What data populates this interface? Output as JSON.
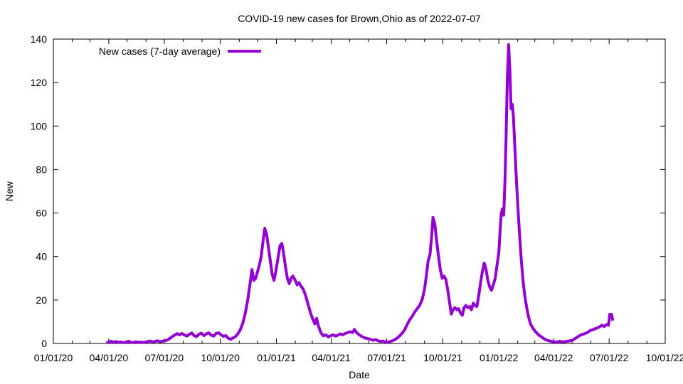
{
  "chart_data": {
    "type": "line",
    "title": "COVID-19 new cases for Brown,Ohio as of 2022-07-07",
    "xlabel": "Date",
    "ylabel": "New",
    "x_range": [
      "2020-01-01",
      "2022-10-01"
    ],
    "ylim": [
      0,
      140
    ],
    "yticks": [
      0,
      20,
      40,
      60,
      80,
      100,
      120,
      140
    ],
    "xticks": [
      {
        "date": "2020-01-01",
        "label": "01/01/20"
      },
      {
        "date": "2020-04-01",
        "label": "04/01/20"
      },
      {
        "date": "2020-07-01",
        "label": "07/01/20"
      },
      {
        "date": "2020-10-01",
        "label": "10/01/20"
      },
      {
        "date": "2021-01-01",
        "label": "01/01/21"
      },
      {
        "date": "2021-04-01",
        "label": "04/01/21"
      },
      {
        "date": "2021-07-01",
        "label": "07/01/21"
      },
      {
        "date": "2021-10-01",
        "label": "10/01/21"
      },
      {
        "date": "2022-01-01",
        "label": "01/01/22"
      },
      {
        "date": "2022-04-01",
        "label": "04/01/22"
      },
      {
        "date": "2022-07-01",
        "label": "07/01/22"
      },
      {
        "date": "2022-10-01",
        "label": "10/01/22"
      }
    ],
    "grid": false,
    "legend_position": "top-left",
    "series": [
      {
        "name": "New cases (7-day average)",
        "color": "#9400d3",
        "points": [
          [
            "2020-03-28",
            0.3
          ],
          [
            "2020-04-01",
            0.7
          ],
          [
            "2020-04-05",
            1.0
          ],
          [
            "2020-04-09",
            0.6
          ],
          [
            "2020-04-13",
            0.9
          ],
          [
            "2020-04-17",
            0.5
          ],
          [
            "2020-04-21",
            0.7
          ],
          [
            "2020-04-25",
            0.4
          ],
          [
            "2020-04-29",
            0.6
          ],
          [
            "2020-05-03",
            1.0
          ],
          [
            "2020-05-07",
            0.6
          ],
          [
            "2020-05-11",
            0.4
          ],
          [
            "2020-05-15",
            0.8
          ],
          [
            "2020-05-19",
            0.5
          ],
          [
            "2020-05-23",
            0.7
          ],
          [
            "2020-05-27",
            0.4
          ],
          [
            "2020-05-31",
            0.6
          ],
          [
            "2020-06-04",
            0.9
          ],
          [
            "2020-06-08",
            1.1
          ],
          [
            "2020-06-12",
            0.7
          ],
          [
            "2020-06-16",
            0.9
          ],
          [
            "2020-06-20",
            1.2
          ],
          [
            "2020-06-24",
            0.8
          ],
          [
            "2020-06-28",
            1.0
          ],
          [
            "2020-07-02",
            1.2
          ],
          [
            "2020-07-06",
            1.6
          ],
          [
            "2020-07-10",
            2.3
          ],
          [
            "2020-07-14",
            3.1
          ],
          [
            "2020-07-18",
            3.9
          ],
          [
            "2020-07-22",
            4.5
          ],
          [
            "2020-07-26",
            4.0
          ],
          [
            "2020-07-30",
            4.6
          ],
          [
            "2020-08-03",
            3.9
          ],
          [
            "2020-08-07",
            3.4
          ],
          [
            "2020-08-11",
            4.2
          ],
          [
            "2020-08-15",
            4.8
          ],
          [
            "2020-08-19",
            3.6
          ],
          [
            "2020-08-23",
            3.1
          ],
          [
            "2020-08-27",
            4.3
          ],
          [
            "2020-08-31",
            4.7
          ],
          [
            "2020-09-04",
            3.6
          ],
          [
            "2020-09-08",
            4.4
          ],
          [
            "2020-09-12",
            4.9
          ],
          [
            "2020-09-16",
            3.8
          ],
          [
            "2020-09-20",
            3.4
          ],
          [
            "2020-09-24",
            4.6
          ],
          [
            "2020-09-28",
            4.9
          ],
          [
            "2020-10-02",
            4.0
          ],
          [
            "2020-10-06",
            3.3
          ],
          [
            "2020-10-10",
            3.6
          ],
          [
            "2020-10-14",
            2.4
          ],
          [
            "2020-10-18",
            1.9
          ],
          [
            "2020-10-22",
            2.6
          ],
          [
            "2020-10-26",
            3.2
          ],
          [
            "2020-10-30",
            4.5
          ],
          [
            "2020-11-03",
            6.5
          ],
          [
            "2020-11-07",
            9.5
          ],
          [
            "2020-11-11",
            14.0
          ],
          [
            "2020-11-15",
            20.0
          ],
          [
            "2020-11-19",
            28.0
          ],
          [
            "2020-11-22",
            34.0
          ],
          [
            "2020-11-25",
            29.0
          ],
          [
            "2020-11-28",
            30.0
          ],
          [
            "2020-12-01",
            33.0
          ],
          [
            "2020-12-04",
            36.0
          ],
          [
            "2020-12-07",
            40.0
          ],
          [
            "2020-12-10",
            47.0
          ],
          [
            "2020-12-13",
            53.0
          ],
          [
            "2020-12-16",
            50.0
          ],
          [
            "2020-12-19",
            44.0
          ],
          [
            "2020-12-22",
            38.0
          ],
          [
            "2020-12-25",
            32.0
          ],
          [
            "2020-12-28",
            29.0
          ],
          [
            "2020-12-31",
            33.0
          ],
          [
            "2021-01-04",
            40.0
          ],
          [
            "2021-01-07",
            45.0
          ],
          [
            "2021-01-10",
            46.0
          ],
          [
            "2021-01-13",
            41.0
          ],
          [
            "2021-01-16",
            35.0
          ],
          [
            "2021-01-19",
            30.0
          ],
          [
            "2021-01-22",
            27.5
          ],
          [
            "2021-01-25",
            30.0
          ],
          [
            "2021-01-28",
            31.0
          ],
          [
            "2021-02-01",
            29.0
          ],
          [
            "2021-02-04",
            27.0
          ],
          [
            "2021-02-07",
            28.0
          ],
          [
            "2021-02-10",
            26.5
          ],
          [
            "2021-02-14",
            25.0
          ],
          [
            "2021-02-18",
            22.0
          ],
          [
            "2021-02-22",
            18.0
          ],
          [
            "2021-02-26",
            14.0
          ],
          [
            "2021-03-02",
            11.0
          ],
          [
            "2021-03-05",
            9.0
          ],
          [
            "2021-03-08",
            11.5
          ],
          [
            "2021-03-11",
            8.0
          ],
          [
            "2021-03-15",
            5.0
          ],
          [
            "2021-03-19",
            3.5
          ],
          [
            "2021-03-23",
            4.0
          ],
          [
            "2021-03-27",
            3.0
          ],
          [
            "2021-03-31",
            3.5
          ],
          [
            "2021-04-04",
            4.0
          ],
          [
            "2021-04-08",
            3.4
          ],
          [
            "2021-04-12",
            3.8
          ],
          [
            "2021-04-16",
            4.4
          ],
          [
            "2021-04-20",
            4.0
          ],
          [
            "2021-04-24",
            4.6
          ],
          [
            "2021-04-28",
            5.0
          ],
          [
            "2021-05-02",
            5.4
          ],
          [
            "2021-05-06",
            5.0
          ],
          [
            "2021-05-09",
            6.5
          ],
          [
            "2021-05-12",
            5.2
          ],
          [
            "2021-05-16",
            4.2
          ],
          [
            "2021-05-20",
            3.4
          ],
          [
            "2021-05-24",
            2.8
          ],
          [
            "2021-05-28",
            2.4
          ],
          [
            "2021-06-01",
            2.2
          ],
          [
            "2021-06-05",
            1.8
          ],
          [
            "2021-06-09",
            1.5
          ],
          [
            "2021-06-13",
            1.8
          ],
          [
            "2021-06-17",
            1.2
          ],
          [
            "2021-06-21",
            0.9
          ],
          [
            "2021-06-25",
            1.1
          ],
          [
            "2021-06-29",
            0.7
          ],
          [
            "2021-07-03",
            0.6
          ],
          [
            "2021-07-07",
            0.9
          ],
          [
            "2021-07-11",
            1.3
          ],
          [
            "2021-07-15",
            1.9
          ],
          [
            "2021-07-19",
            2.7
          ],
          [
            "2021-07-23",
            3.7
          ],
          [
            "2021-07-27",
            4.9
          ],
          [
            "2021-07-31",
            6.5
          ],
          [
            "2021-08-04",
            9.0
          ],
          [
            "2021-08-08",
            11.0
          ],
          [
            "2021-08-12",
            12.5
          ],
          [
            "2021-08-16",
            14.5
          ],
          [
            "2021-08-20",
            16.0
          ],
          [
            "2021-08-24",
            17.5
          ],
          [
            "2021-08-28",
            20.0
          ],
          [
            "2021-09-01",
            25.0
          ],
          [
            "2021-09-04",
            31.0
          ],
          [
            "2021-09-07",
            38.0
          ],
          [
            "2021-09-10",
            41.0
          ],
          [
            "2021-09-13",
            50.0
          ],
          [
            "2021-09-15",
            58.0
          ],
          [
            "2021-09-18",
            55.0
          ],
          [
            "2021-09-21",
            47.0
          ],
          [
            "2021-09-24",
            40.0
          ],
          [
            "2021-09-27",
            34.0
          ],
          [
            "2021-09-30",
            30.0
          ],
          [
            "2021-10-03",
            31.0
          ],
          [
            "2021-10-06",
            29.5
          ],
          [
            "2021-10-09",
            25.0
          ],
          [
            "2021-10-12",
            19.0
          ],
          [
            "2021-10-15",
            13.5
          ],
          [
            "2021-10-18",
            15.5
          ],
          [
            "2021-10-21",
            16.5
          ],
          [
            "2021-10-24",
            15.5
          ],
          [
            "2021-10-27",
            16.0
          ],
          [
            "2021-10-30",
            14.0
          ],
          [
            "2021-11-02",
            13.0
          ],
          [
            "2021-11-05",
            16.5
          ],
          [
            "2021-11-08",
            17.5
          ],
          [
            "2021-11-11",
            16.5
          ],
          [
            "2021-11-14",
            17.0
          ],
          [
            "2021-11-17",
            15.5
          ],
          [
            "2021-11-20",
            18.5
          ],
          [
            "2021-11-23",
            17.5
          ],
          [
            "2021-11-26",
            17.0
          ],
          [
            "2021-11-29",
            22.0
          ],
          [
            "2021-12-02",
            28.0
          ],
          [
            "2021-12-05",
            33.0
          ],
          [
            "2021-12-08",
            37.0
          ],
          [
            "2021-12-11",
            34.0
          ],
          [
            "2021-12-14",
            29.0
          ],
          [
            "2021-12-17",
            26.0
          ],
          [
            "2021-12-20",
            24.5
          ],
          [
            "2021-12-23",
            27.0
          ],
          [
            "2021-12-26",
            30.0
          ],
          [
            "2021-12-29",
            36.0
          ],
          [
            "2022-01-01",
            42.0
          ],
          [
            "2022-01-03",
            52.0
          ],
          [
            "2022-01-05",
            60.0
          ],
          [
            "2022-01-07",
            62.0
          ],
          [
            "2022-01-09",
            59.0
          ],
          [
            "2022-01-11",
            74.0
          ],
          [
            "2022-01-13",
            96.0
          ],
          [
            "2022-01-15",
            122.0
          ],
          [
            "2022-01-17",
            137.5
          ],
          [
            "2022-01-19",
            126.0
          ],
          [
            "2022-01-21",
            108.0
          ],
          [
            "2022-01-23",
            110.0
          ],
          [
            "2022-01-25",
            104.0
          ],
          [
            "2022-01-27",
            92.0
          ],
          [
            "2022-01-29",
            80.0
          ],
          [
            "2022-02-01",
            64.0
          ],
          [
            "2022-02-04",
            50.0
          ],
          [
            "2022-02-07",
            38.0
          ],
          [
            "2022-02-10",
            28.0
          ],
          [
            "2022-02-13",
            21.0
          ],
          [
            "2022-02-16",
            16.0
          ],
          [
            "2022-02-19",
            12.0
          ],
          [
            "2022-02-22",
            9.0
          ],
          [
            "2022-02-26",
            7.0
          ],
          [
            "2022-03-02",
            5.5
          ],
          [
            "2022-03-07",
            4.0
          ],
          [
            "2022-03-12",
            3.0
          ],
          [
            "2022-03-17",
            2.0
          ],
          [
            "2022-03-22",
            1.4
          ],
          [
            "2022-03-27",
            1.0
          ],
          [
            "2022-04-01",
            0.8
          ],
          [
            "2022-04-06",
            0.6
          ],
          [
            "2022-04-11",
            1.0
          ],
          [
            "2022-04-16",
            0.7
          ],
          [
            "2022-04-21",
            0.9
          ],
          [
            "2022-04-26",
            1.1
          ],
          [
            "2022-05-01",
            1.4
          ],
          [
            "2022-05-06",
            2.2
          ],
          [
            "2022-05-11",
            3.2
          ],
          [
            "2022-05-16",
            4.0
          ],
          [
            "2022-05-21",
            4.4
          ],
          [
            "2022-05-26",
            5.0
          ],
          [
            "2022-05-31",
            6.0
          ],
          [
            "2022-06-05",
            6.4
          ],
          [
            "2022-06-10",
            7.0
          ],
          [
            "2022-06-15",
            7.6
          ],
          [
            "2022-06-19",
            8.4
          ],
          [
            "2022-06-23",
            7.8
          ],
          [
            "2022-06-27",
            8.8
          ],
          [
            "2022-06-30",
            8.4
          ],
          [
            "2022-07-02",
            13.4
          ],
          [
            "2022-07-05",
            13.4
          ],
          [
            "2022-07-07",
            10.5
          ]
        ]
      }
    ]
  }
}
